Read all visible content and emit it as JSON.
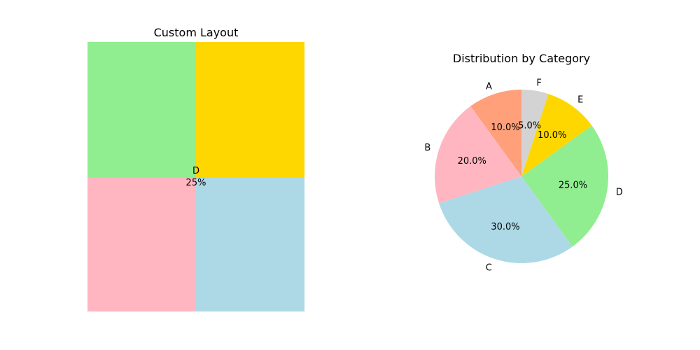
{
  "chart_data": [
    {
      "type": "treemap",
      "title": "Custom Layout",
      "cells": [
        {
          "color": "#90EE90"
        },
        {
          "color": "#FFD700"
        },
        {
          "color": "#FFB6C1"
        },
        {
          "color": "#ADD8E6"
        }
      ],
      "annotation": {
        "label": "D",
        "value": "25%"
      }
    },
    {
      "type": "pie",
      "title": "Distribution by Category",
      "start_angle_deg": 90,
      "direction": "counterclockwise",
      "slices": [
        {
          "label": "A",
          "value": 10,
          "pct": "10.0%",
          "color": "#FFA07A"
        },
        {
          "label": "B",
          "value": 20,
          "pct": "20.0%",
          "color": "#FFB6C1"
        },
        {
          "label": "C",
          "value": 30,
          "pct": "30.0%",
          "color": "#ADD8E6"
        },
        {
          "label": "D",
          "value": 25,
          "pct": "25.0%",
          "color": "#90EE90"
        },
        {
          "label": "E",
          "value": 10,
          "pct": "10.0%",
          "color": "#FFD700"
        },
        {
          "label": "F",
          "value": 5,
          "pct": "5.0%",
          "color": "#D3D3D3"
        }
      ]
    }
  ]
}
